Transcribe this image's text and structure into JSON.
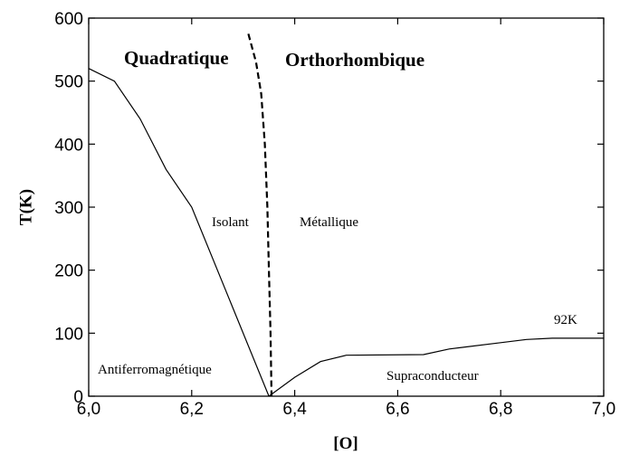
{
  "chart_data": {
    "type": "line",
    "xlabel": "[O]",
    "ylabel": "T(K)",
    "xlim": [
      6.0,
      7.0
    ],
    "ylim": [
      0,
      600
    ],
    "xticks": [
      {
        "value": 6.0,
        "label": "6,0"
      },
      {
        "value": 6.2,
        "label": "6,2"
      },
      {
        "value": 6.4,
        "label": "6,4"
      },
      {
        "value": 6.6,
        "label": "6,6"
      },
      {
        "value": 6.8,
        "label": "6,8"
      },
      {
        "value": 7.0,
        "label": "7,0"
      }
    ],
    "yticks": [
      0,
      100,
      200,
      300,
      400,
      500,
      600
    ],
    "grid": false,
    "series": [
      {
        "color": "#000000",
        "dashed": false,
        "x": [
          6.0,
          6.05,
          6.1,
          6.15,
          6.2,
          6.35
        ],
        "values": [
          520,
          500,
          440,
          360,
          300,
          0
        ]
      },
      {
        "color": "#000000",
        "dashed": false,
        "x": [
          6.35,
          6.4,
          6.45,
          6.5,
          6.65,
          6.7,
          6.8,
          6.85,
          6.9,
          7.0
        ],
        "values": [
          0,
          30,
          55,
          65,
          66,
          75,
          85,
          90,
          92,
          92
        ]
      },
      {
        "color": "#000000",
        "dashed": true,
        "x": [
          6.31,
          6.325,
          6.335,
          6.342,
          6.347,
          6.35,
          6.353,
          6.355
        ],
        "values": [
          575,
          530,
          480,
          400,
          300,
          200,
          100,
          0
        ]
      }
    ],
    "annotations": [
      "Quadratique",
      "Orthorhombique",
      "Isolant",
      "Métallique",
      "Antiferromagnétique",
      "Supraconducteur",
      "92K"
    ]
  }
}
